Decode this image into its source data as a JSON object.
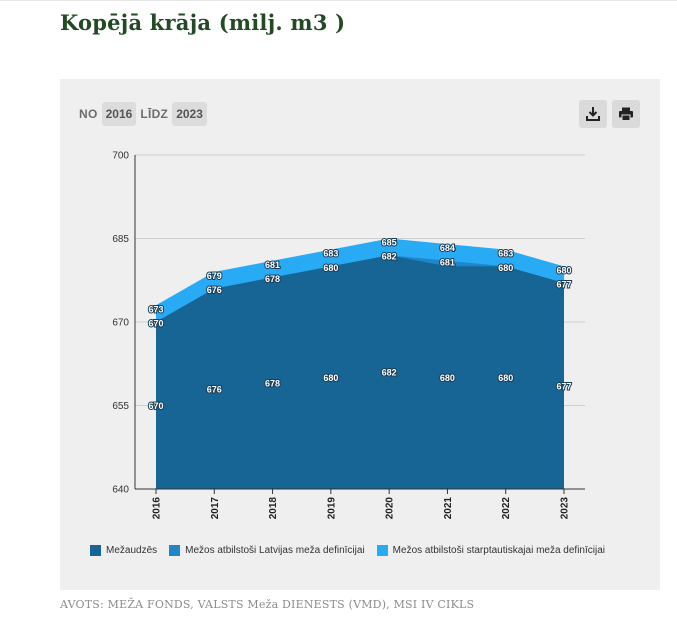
{
  "page": {
    "title": "Kopējā krāja (milj. m3 )",
    "source": "AVOTS: MEŽA FONDS, VALSTS Meža DIENESTS (VMD), MSI IV CIKLS"
  },
  "controls": {
    "from_label": "NO",
    "from_year": "2016",
    "to_label": "LĪDZ",
    "to_year": "2023",
    "download_icon": "download-icon",
    "print_icon": "print-icon"
  },
  "colors": {
    "mezaudzes": "#166594",
    "latvijas": "#1e86c9",
    "starptautiskajai": "#29aaf5"
  },
  "chart_data": {
    "type": "area",
    "stacked": false,
    "x": [
      "2016",
      "2017",
      "2018",
      "2019",
      "2020",
      "2021",
      "2022",
      "2023"
    ],
    "ylim": [
      640,
      700
    ],
    "yticks": [
      640,
      655,
      670,
      685,
      700
    ],
    "grid": true,
    "legend_position": "bottom",
    "series": [
      {
        "name": "Mežaudzēs",
        "values": [
          670,
          676,
          678,
          680,
          682,
          680,
          680,
          677
        ]
      },
      {
        "name": "Mežos atbilstoši Latvijas meža definīcijai",
        "values": [
          670,
          676,
          678,
          680,
          682,
          681,
          680,
          677
        ]
      },
      {
        "name": "Mežos atbilstoši starptautiskajai meža definīcijai",
        "values": [
          673,
          679,
          681,
          683,
          685,
          684,
          683,
          680
        ]
      }
    ]
  }
}
